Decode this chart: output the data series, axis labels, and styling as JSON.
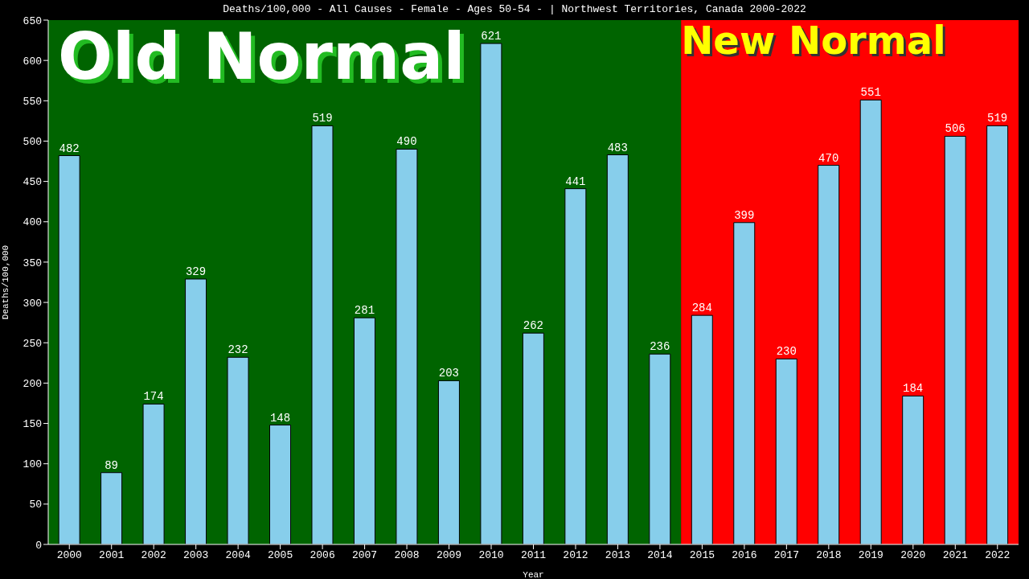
{
  "chart_data": {
    "type": "bar",
    "title": "Deaths/100,000 - All Causes - Female - Ages 50-54 -  | Northwest Territories, Canada 2000-2022",
    "xlabel": "Year",
    "ylabel": "Deaths/100,000",
    "categories": [
      "2000",
      "2001",
      "2002",
      "2003",
      "2004",
      "2005",
      "2006",
      "2007",
      "2008",
      "2009",
      "2010",
      "2011",
      "2012",
      "2013",
      "2014",
      "2015",
      "2016",
      "2017",
      "2018",
      "2019",
      "2020",
      "2021",
      "2022"
    ],
    "values": [
      482,
      89,
      174,
      329,
      232,
      148,
      519,
      281,
      490,
      203,
      621,
      262,
      441,
      483,
      236,
      284,
      399,
      230,
      470,
      551,
      184,
      506,
      519
    ],
    "color": "#87ceeb",
    "ylim": [
      0,
      650
    ],
    "yticks": [
      0,
      50,
      100,
      150,
      200,
      250,
      300,
      350,
      400,
      450,
      500,
      550,
      600,
      650
    ],
    "grid": false,
    "data_labels": true,
    "bands": [
      {
        "axis": "x",
        "from": "2000",
        "to": "2014",
        "label": "Old Normal",
        "color": "#006400"
      },
      {
        "axis": "x",
        "from": "2015",
        "to": "2022",
        "label": "New Normal",
        "color": "#ff0000"
      }
    ]
  }
}
